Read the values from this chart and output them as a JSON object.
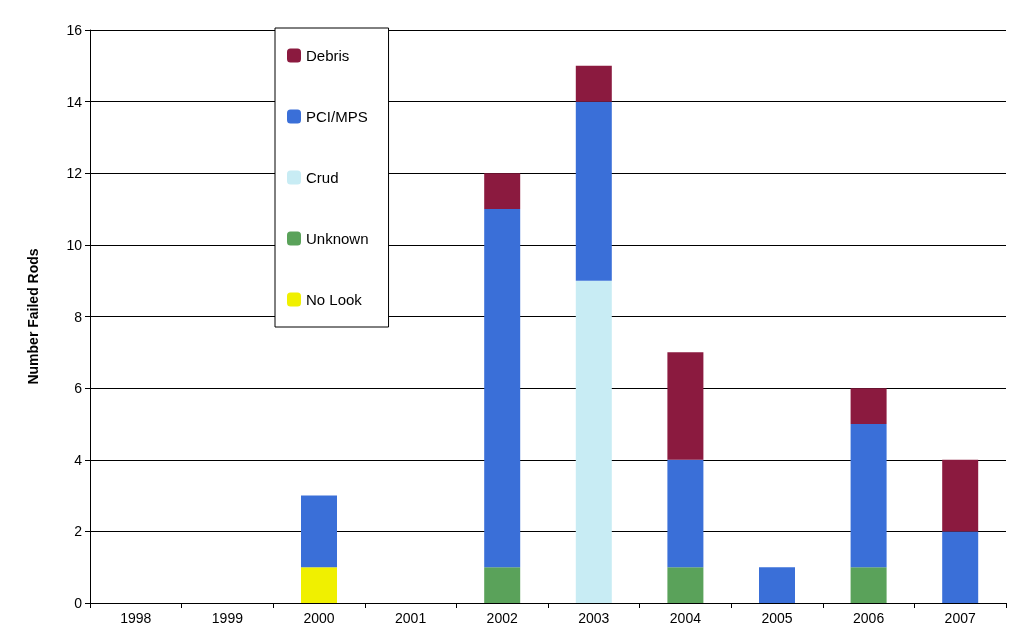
{
  "chart_data": {
    "type": "bar",
    "stacked": true,
    "ylabel": "Number Failed Rods",
    "categories": [
      "1998",
      "1999",
      "2000",
      "2001",
      "2002",
      "2003",
      "2004",
      "2005",
      "2006",
      "2007"
    ],
    "series": [
      {
        "name": "No Look",
        "color": "#f0f000",
        "values": [
          0,
          0,
          1,
          0,
          0,
          0,
          0,
          0,
          0,
          0
        ]
      },
      {
        "name": "Unknown",
        "color": "#5aa25a",
        "values": [
          0,
          0,
          0,
          0,
          1,
          0,
          1,
          0,
          1,
          0
        ]
      },
      {
        "name": "Crud",
        "color": "#c8ecf4",
        "values": [
          0,
          0,
          0,
          0,
          0,
          9,
          0,
          0,
          0,
          0
        ]
      },
      {
        "name": "PCI/MPS",
        "color": "#3a6fd8",
        "values": [
          0,
          0,
          2,
          0,
          10,
          5,
          3,
          1,
          4,
          2
        ]
      },
      {
        "name": "Debris",
        "color": "#8b1a3f",
        "values": [
          0,
          0,
          0,
          0,
          1,
          1,
          3,
          0,
          1,
          2
        ]
      }
    ],
    "ylim": [
      0,
      16
    ],
    "yticks": [
      0,
      2,
      4,
      6,
      8,
      10,
      12,
      14,
      16
    ],
    "grid": "y",
    "legend": "top left"
  }
}
